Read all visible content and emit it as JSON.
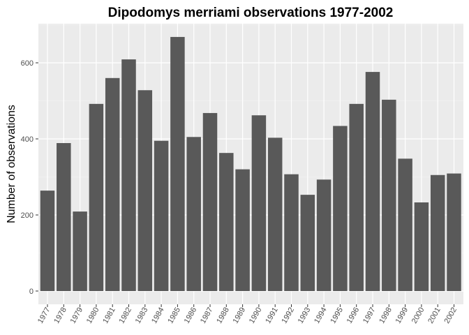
{
  "chart_data": {
    "type": "bar",
    "title": "Dipodomys merriami observations 1977-2002",
    "xlabel": "",
    "ylabel": "Number of observations",
    "categories": [
      "1977",
      "1978",
      "1979",
      "1980",
      "1981",
      "1982",
      "1983",
      "1984",
      "1985",
      "1986",
      "1987",
      "1988",
      "1989",
      "1990",
      "1991",
      "1992",
      "1993",
      "1994",
      "1995",
      "1996",
      "1997",
      "1998",
      "1999",
      "2000",
      "2001",
      "2002"
    ],
    "values": [
      264,
      389,
      209,
      492,
      560,
      609,
      528,
      395,
      668,
      405,
      468,
      363,
      320,
      462,
      403,
      307,
      253,
      293,
      434,
      492,
      576,
      503,
      348,
      233,
      305,
      309
    ],
    "ylim": [
      0,
      700
    ],
    "yticks": [
      0,
      200,
      400,
      600
    ],
    "grid": true,
    "legend": "none",
    "bar_color": "#595959",
    "panel_color": "#ebebeb"
  }
}
